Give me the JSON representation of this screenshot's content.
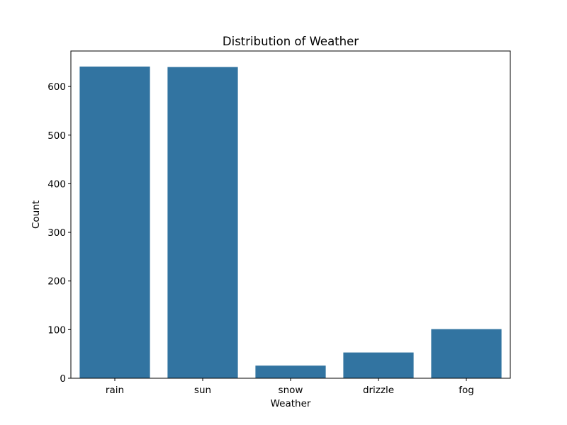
{
  "chart_data": {
    "type": "bar",
    "title": "Distribution of Weather",
    "xlabel": "Weather",
    "ylabel": "Count",
    "categories": [
      "rain",
      "sun",
      "snow",
      "drizzle",
      "fog"
    ],
    "values": [
      641,
      640,
      26,
      53,
      101
    ],
    "ylim": [
      0,
      673
    ],
    "yticks": [
      0,
      100,
      200,
      300,
      400,
      500,
      600
    ],
    "bar_color": "#3274a1",
    "grid": false,
    "legend": "none"
  }
}
